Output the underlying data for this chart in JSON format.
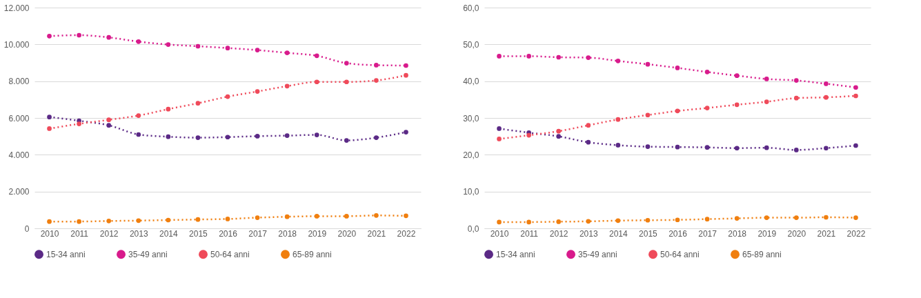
{
  "chart_data": [
    {
      "type": "line",
      "categories": [
        "2010",
        "2011",
        "2012",
        "2013",
        "2014",
        "2015",
        "2016",
        "2017",
        "2018",
        "2019",
        "2020",
        "2021",
        "2022"
      ],
      "ylim": [
        0,
        12000
      ],
      "yticks": [
        {
          "value": 0,
          "label": "0"
        },
        {
          "value": 2000,
          "label": "2.000"
        },
        {
          "value": 4000,
          "label": "4.000"
        },
        {
          "value": 6000,
          "label": "6.000"
        },
        {
          "value": 8000,
          "label": "8.000"
        },
        {
          "value": 10000,
          "label": "10.000"
        },
        {
          "value": 12000,
          "label": "12.000"
        }
      ],
      "grid": "y",
      "legend": "bottom",
      "marker": "circle",
      "line_style": "dotted",
      "series": [
        {
          "name": "15-34 anni",
          "color": "#5b2a86",
          "values": [
            6050,
            5850,
            5600,
            5100,
            4980,
            4930,
            4960,
            5010,
            5040,
            5080,
            4780,
            4930,
            5230
          ]
        },
        {
          "name": "35-49 anni",
          "color": "#d81b8c",
          "values": [
            10450,
            10500,
            10380,
            10150,
            9990,
            9900,
            9800,
            9690,
            9540,
            9380,
            8980,
            8870,
            8850
          ]
        },
        {
          "name": "50-64 anni",
          "color": "#ef4a5a",
          "values": [
            5420,
            5680,
            5900,
            6130,
            6480,
            6800,
            7160,
            7440,
            7730,
            7960,
            7960,
            8040,
            8320
          ]
        },
        {
          "name": "65-89 anni",
          "color": "#f07f0f",
          "values": [
            370,
            370,
            400,
            420,
            450,
            480,
            510,
            580,
            630,
            660,
            660,
            700,
            680
          ]
        }
      ]
    },
    {
      "type": "line",
      "categories": [
        "2010",
        "2011",
        "2012",
        "2013",
        "2014",
        "2015",
        "2016",
        "2017",
        "2018",
        "2019",
        "2020",
        "2021",
        "2022"
      ],
      "ylim": [
        0,
        60
      ],
      "yticks": [
        {
          "value": 0,
          "label": "0,0"
        },
        {
          "value": 10,
          "label": "10,0"
        },
        {
          "value": 20,
          "label": "20,0"
        },
        {
          "value": 30,
          "label": "30,0"
        },
        {
          "value": 40,
          "label": "40,0"
        },
        {
          "value": 50,
          "label": "50,0"
        },
        {
          "value": 60,
          "label": "60,0"
        }
      ],
      "grid": "y",
      "legend": "bottom",
      "marker": "circle",
      "line_style": "dotted",
      "series": [
        {
          "name": "15-34 anni",
          "color": "#5b2a86",
          "values": [
            27.1,
            26.0,
            25.0,
            23.4,
            22.6,
            22.2,
            22.1,
            22.0,
            21.8,
            21.9,
            21.3,
            21.8,
            22.5
          ]
        },
        {
          "name": "35-49 anni",
          "color": "#d81b8c",
          "values": [
            46.8,
            46.8,
            46.5,
            46.4,
            45.5,
            44.6,
            43.6,
            42.5,
            41.5,
            40.6,
            40.2,
            39.3,
            38.3
          ]
        },
        {
          "name": "50-64 anni",
          "color": "#ef4a5a",
          "values": [
            24.3,
            25.3,
            26.4,
            28.0,
            29.6,
            30.8,
            31.9,
            32.7,
            33.6,
            34.4,
            35.4,
            35.6,
            36.0
          ]
        },
        {
          "name": "65-89 anni",
          "color": "#f07f0f",
          "values": [
            1.7,
            1.7,
            1.8,
            1.9,
            2.1,
            2.2,
            2.3,
            2.5,
            2.7,
            2.9,
            2.9,
            3.0,
            2.9
          ]
        }
      ]
    }
  ]
}
